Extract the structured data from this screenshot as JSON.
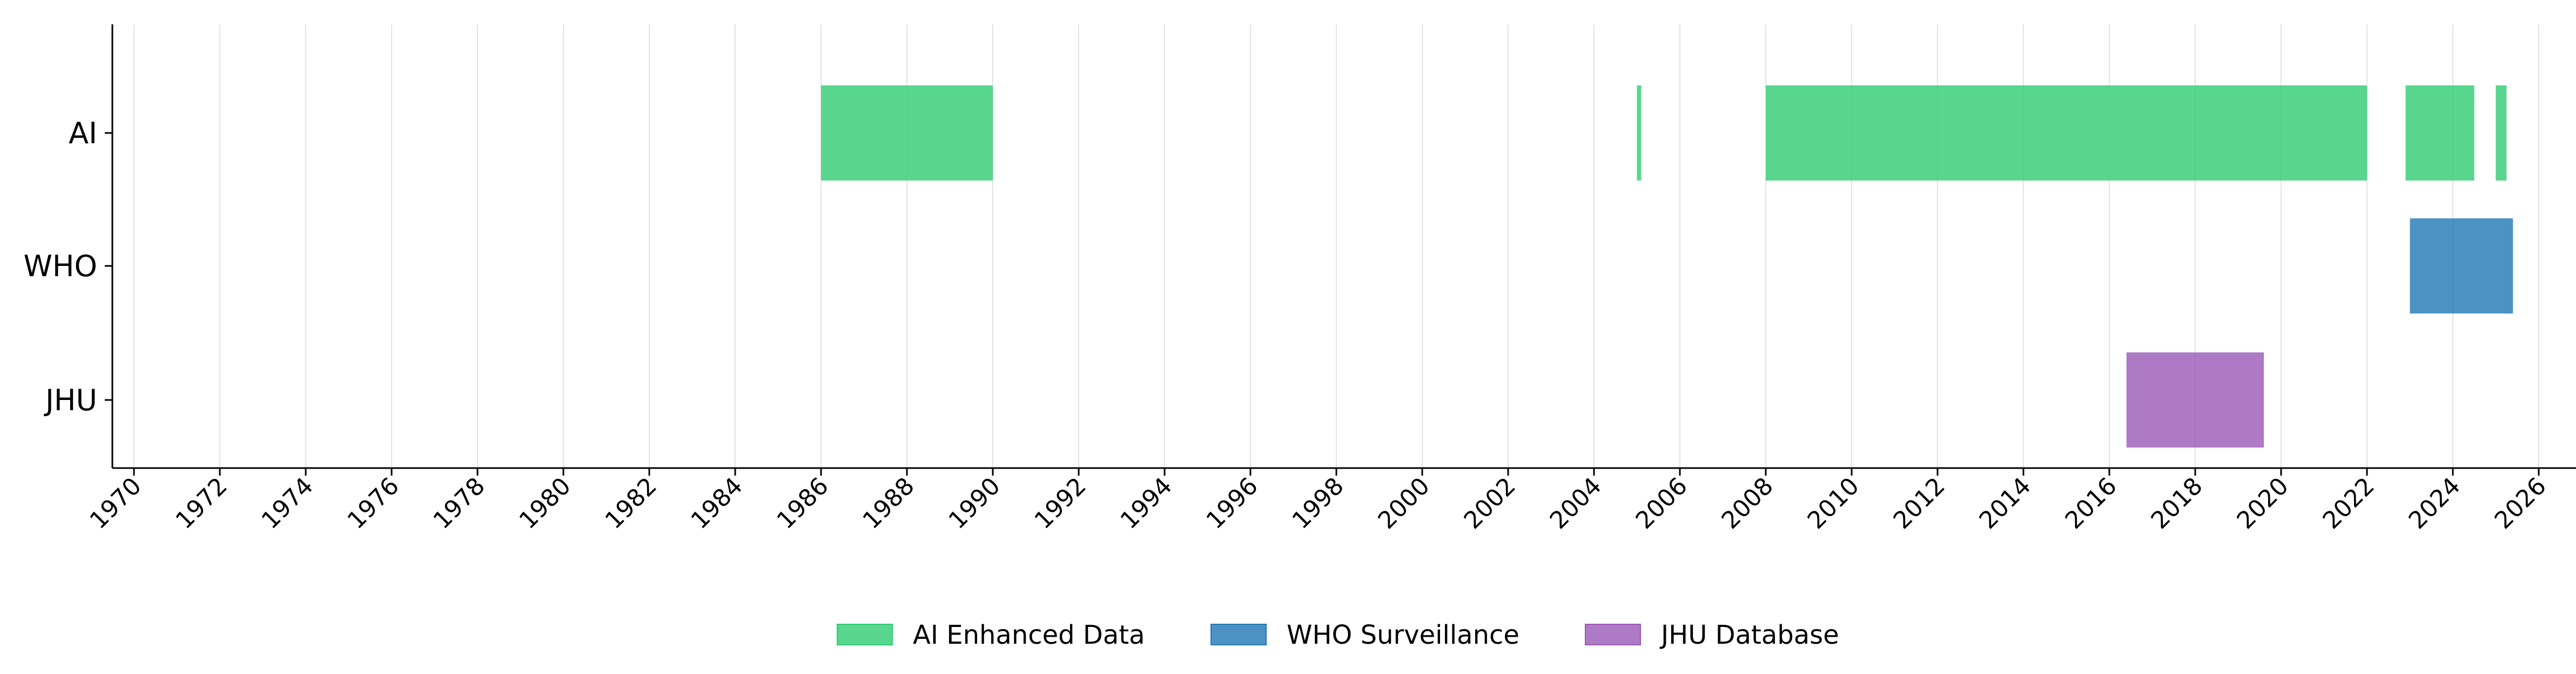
{
  "chart_data": {
    "type": "timeline",
    "title": "",
    "xlabel": "",
    "ylabel": "",
    "xlim": [
      1969.5,
      2026.5
    ],
    "grid": "vertical",
    "legend_position": "bottom-center",
    "x_ticks": [
      1970,
      1972,
      1974,
      1976,
      1978,
      1980,
      1982,
      1984,
      1986,
      1988,
      1990,
      1992,
      1994,
      1996,
      1998,
      2000,
      2002,
      2004,
      2006,
      2008,
      2010,
      2012,
      2014,
      2016,
      2018,
      2020,
      2022,
      2024,
      2026
    ],
    "rows": [
      "AI",
      "WHO",
      "JHU"
    ],
    "series": [
      {
        "name": "AI Enhanced Data",
        "row": "AI",
        "color": "#2ecc71",
        "spans": [
          [
            1986.0,
            1990.0
          ],
          [
            2005.0,
            2005.1
          ],
          [
            2008.0,
            2022.0
          ],
          [
            2022.9,
            2024.5
          ],
          [
            2025.0,
            2025.25
          ]
        ]
      },
      {
        "name": "WHO Surveillance",
        "row": "WHO",
        "color": "#1f77b4",
        "spans": [
          [
            2023.0,
            2025.4
          ]
        ]
      },
      {
        "name": "JHU Database",
        "row": "JHU",
        "color": "#9b59b6",
        "spans": [
          [
            2016.4,
            2019.6
          ]
        ]
      }
    ]
  }
}
